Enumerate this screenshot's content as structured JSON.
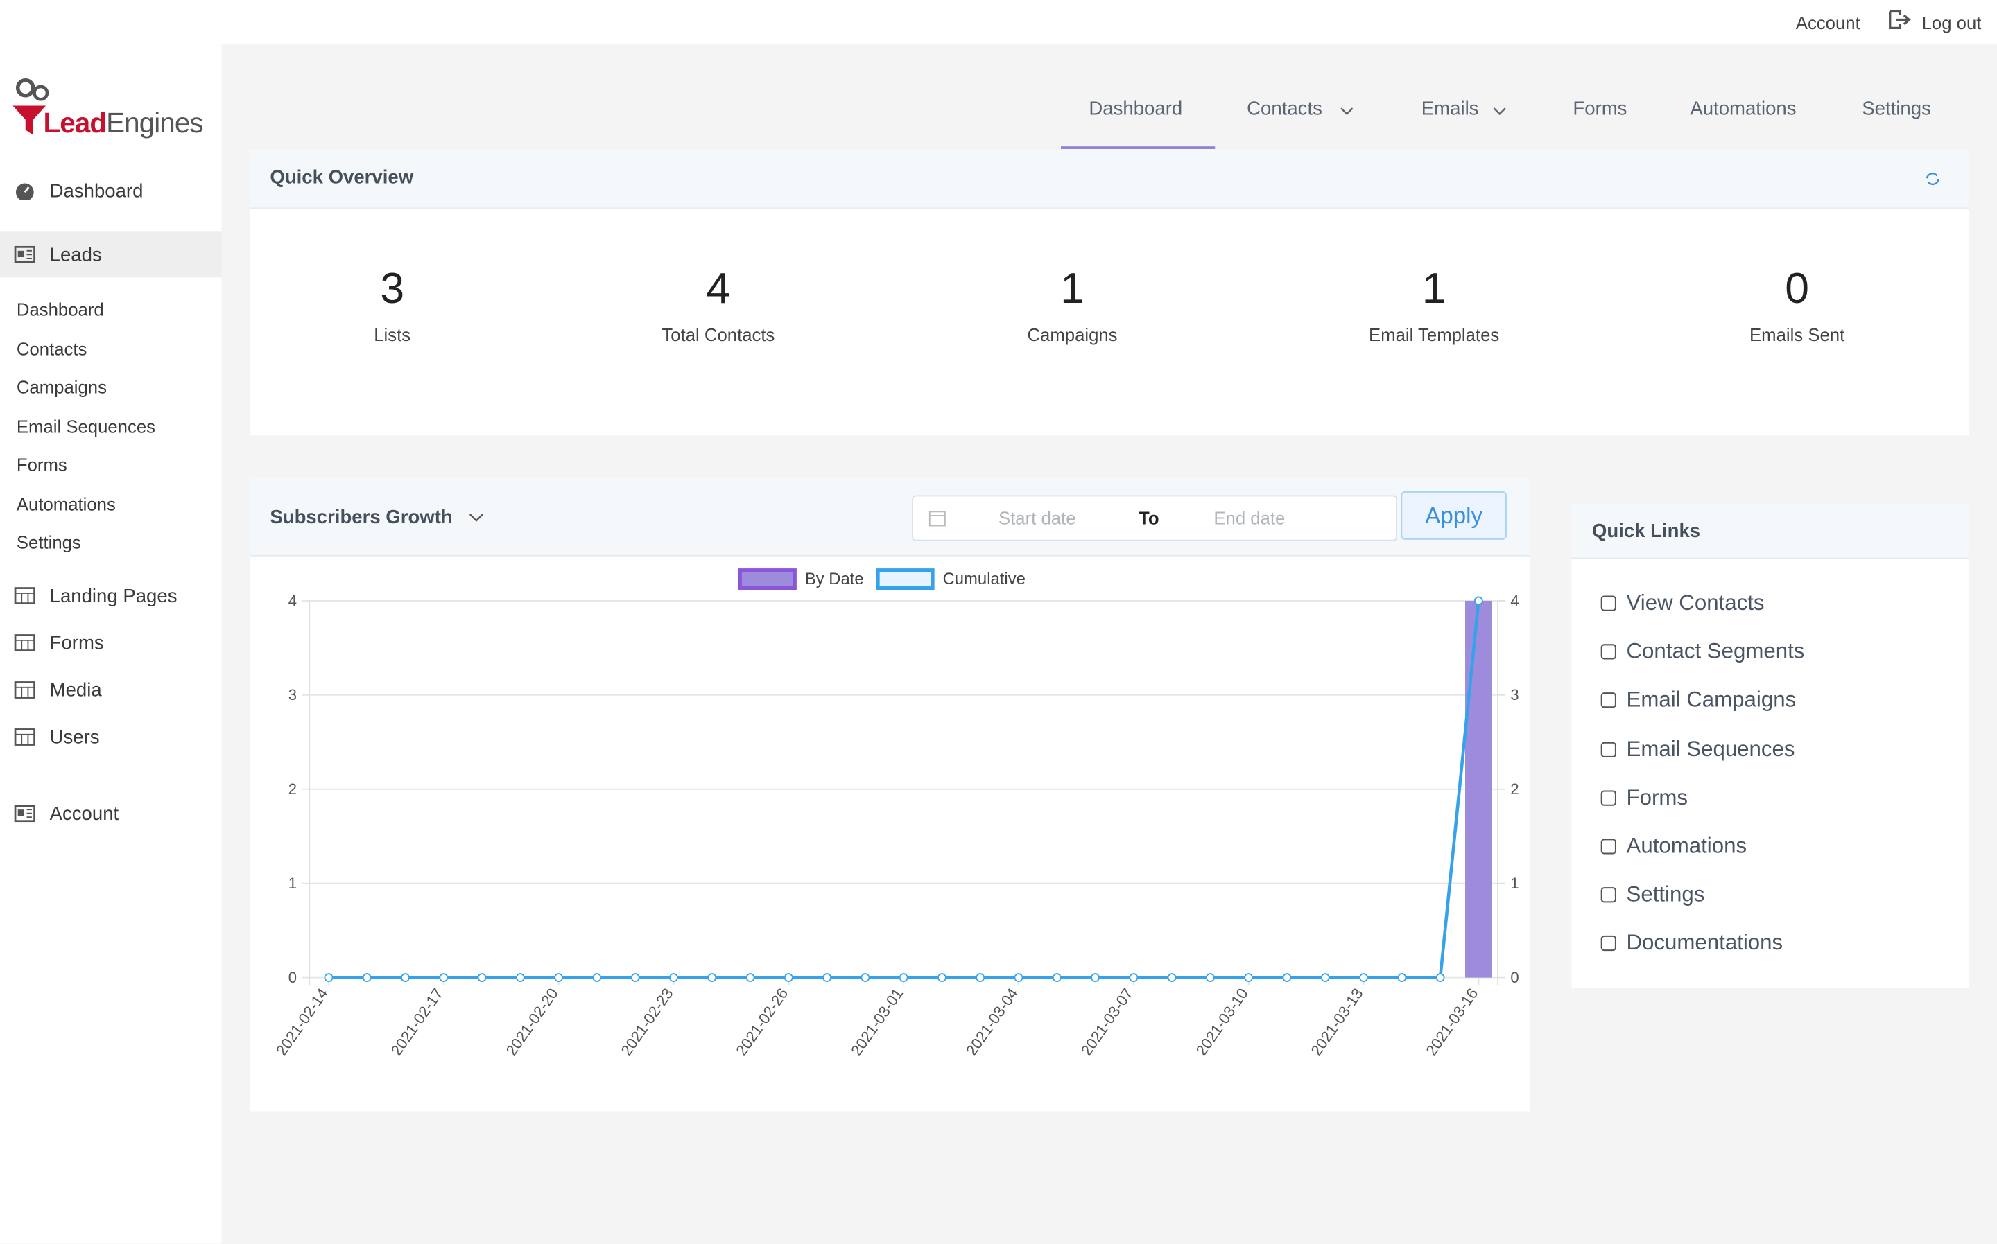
{
  "topbar": {
    "account": "Account",
    "logout": "Log out"
  },
  "sidebar": {
    "logo_lead": "Lead",
    "logo_engines": "Engines",
    "items": [
      "Dashboard",
      "Leads"
    ],
    "submenu": [
      "Dashboard",
      "Contacts",
      "Campaigns",
      "Email Sequences",
      "Forms",
      "Automations",
      "Settings"
    ],
    "more_items": [
      "Landing Pages",
      "Forms",
      "Media",
      "Users"
    ],
    "account": "Account"
  },
  "nav": [
    "Dashboard",
    "Contacts",
    "Emails",
    "Forms",
    "Automations",
    "Settings"
  ],
  "overview": {
    "title": "Quick Overview",
    "stats": [
      {
        "value": 3,
        "label": "Lists"
      },
      {
        "value": 4,
        "label": "Total Contacts"
      },
      {
        "value": 1,
        "label": "Campaigns"
      },
      {
        "value": 1,
        "label": "Email Templates"
      },
      {
        "value": 0,
        "label": "Emails Sent"
      }
    ]
  },
  "growth": {
    "title": "Subscribers Growth",
    "start_placeholder": "Start date",
    "to": "To",
    "end_placeholder": "End date",
    "apply": "Apply"
  },
  "chart_data": {
    "type": "bar",
    "categories": [
      "2021-02-14",
      null,
      null,
      "2021-02-17",
      null,
      null,
      "2021-02-20",
      null,
      null,
      "2021-02-23",
      null,
      null,
      "2021-02-26",
      null,
      null,
      "2021-03-01",
      null,
      null,
      "2021-03-04",
      null,
      null,
      "2021-03-07",
      null,
      null,
      "2021-03-10",
      null,
      null,
      "2021-03-13",
      null,
      null,
      "2021-03-16"
    ],
    "series": [
      {
        "name": "By Date",
        "type": "bar",
        "color": "#9d8cdb",
        "values": [
          0,
          0,
          0,
          0,
          0,
          0,
          0,
          0,
          0,
          0,
          0,
          0,
          0,
          0,
          0,
          0,
          0,
          0,
          0,
          0,
          0,
          0,
          0,
          0,
          0,
          0,
          0,
          0,
          0,
          0,
          4
        ]
      },
      {
        "name": "Cumulative",
        "type": "line",
        "axis": "y2",
        "color": "#36a2eb",
        "values": [
          0,
          0,
          0,
          0,
          0,
          0,
          0,
          0,
          0,
          0,
          0,
          0,
          0,
          0,
          0,
          0,
          0,
          0,
          0,
          0,
          0,
          0,
          0,
          0,
          0,
          0,
          0,
          0,
          0,
          0,
          4
        ]
      }
    ],
    "ylim": [
      0,
      4
    ],
    "yticks": [
      0,
      1,
      2,
      3,
      4
    ],
    "y2lim": [
      0,
      4
    ],
    "y2ticks": [
      0,
      1,
      2,
      3,
      4
    ],
    "grid": true,
    "legend": "top"
  },
  "quick_links": {
    "title": "Quick Links",
    "items": [
      "View Contacts",
      "Contact Segments",
      "Email Campaigns",
      "Email Sequences",
      "Forms",
      "Automations",
      "Settings",
      "Documentations"
    ]
  }
}
